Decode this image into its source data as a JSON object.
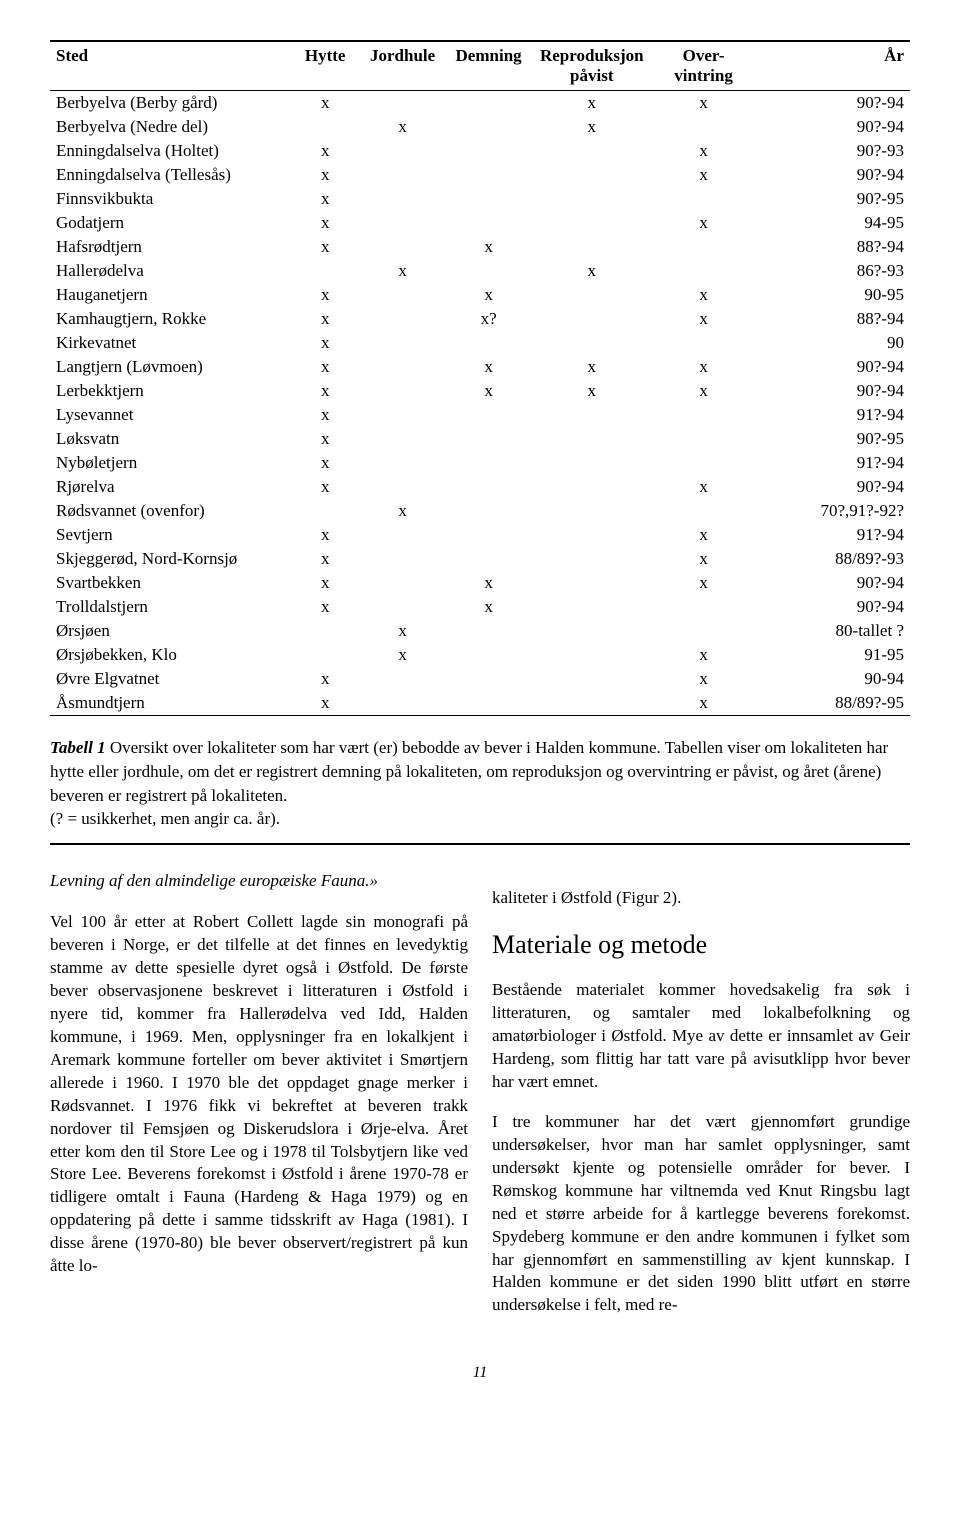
{
  "table": {
    "headers": {
      "sted": "Sted",
      "hytte": "Hytte",
      "jordhule": "Jordhule",
      "demning": "Demning",
      "reproduksjon": "Reproduksjon påvist",
      "overvintring": "Over-vintring",
      "ar": "År"
    },
    "rows": [
      {
        "sted": "Berbyelva (Berby gård)",
        "hytte": "x",
        "jordhule": "",
        "demning": "",
        "repro": "x",
        "over": "x",
        "ar": "90?-94"
      },
      {
        "sted": "Berbyelva (Nedre del)",
        "hytte": "",
        "jordhule": "x",
        "demning": "",
        "repro": "x",
        "over": "",
        "ar": "90?-94"
      },
      {
        "sted": "Enningdalselva (Holtet)",
        "hytte": "x",
        "jordhule": "",
        "demning": "",
        "repro": "",
        "over": "x",
        "ar": "90?-93"
      },
      {
        "sted": "Enningdalselva (Tellesås)",
        "hytte": "x",
        "jordhule": "",
        "demning": "",
        "repro": "",
        "over": "x",
        "ar": "90?-94"
      },
      {
        "sted": "Finnsvikbukta",
        "hytte": "x",
        "jordhule": "",
        "demning": "",
        "repro": "",
        "over": "",
        "ar": "90?-95"
      },
      {
        "sted": "Godatjern",
        "hytte": "x",
        "jordhule": "",
        "demning": "",
        "repro": "",
        "over": "x",
        "ar": "94-95"
      },
      {
        "sted": "Hafsrødtjern",
        "hytte": "x",
        "jordhule": "",
        "demning": "x",
        "repro": "",
        "over": "",
        "ar": "88?-94"
      },
      {
        "sted": "Hallerødelva",
        "hytte": "",
        "jordhule": "x",
        "demning": "",
        "repro": "x",
        "over": "",
        "ar": "86?-93"
      },
      {
        "sted": "Hauganetjern",
        "hytte": "x",
        "jordhule": "",
        "demning": "x",
        "repro": "",
        "over": "x",
        "ar": "90-95"
      },
      {
        "sted": "Kamhaugtjern, Rokke",
        "hytte": "x",
        "jordhule": "",
        "demning": "x?",
        "repro": "",
        "over": "x",
        "ar": "88?-94"
      },
      {
        "sted": "Kirkevatnet",
        "hytte": "x",
        "jordhule": "",
        "demning": "",
        "repro": "",
        "over": "",
        "ar": "90"
      },
      {
        "sted": "Langtjern (Løvmoen)",
        "hytte": "x",
        "jordhule": "",
        "demning": "x",
        "repro": "x",
        "over": "x",
        "ar": "90?-94"
      },
      {
        "sted": "Lerbekktjern",
        "hytte": "x",
        "jordhule": "",
        "demning": "x",
        "repro": "x",
        "over": "x",
        "ar": "90?-94"
      },
      {
        "sted": "Lysevannet",
        "hytte": "x",
        "jordhule": "",
        "demning": "",
        "repro": "",
        "over": "",
        "ar": "91?-94"
      },
      {
        "sted": "Løksvatn",
        "hytte": "x",
        "jordhule": "",
        "demning": "",
        "repro": "",
        "over": "",
        "ar": "90?-95"
      },
      {
        "sted": "Nybøletjern",
        "hytte": "x",
        "jordhule": "",
        "demning": "",
        "repro": "",
        "over": "",
        "ar": "91?-94"
      },
      {
        "sted": "Rjørelva",
        "hytte": "x",
        "jordhule": "",
        "demning": "",
        "repro": "",
        "over": "x",
        "ar": "90?-94"
      },
      {
        "sted": "Rødsvannet (ovenfor)",
        "hytte": "",
        "jordhule": "x",
        "demning": "",
        "repro": "",
        "over": "",
        "ar": "70?,91?-92?"
      },
      {
        "sted": "Sevtjern",
        "hytte": "x",
        "jordhule": "",
        "demning": "",
        "repro": "",
        "over": "x",
        "ar": "91?-94"
      },
      {
        "sted": "Skjeggerød, Nord-Kornsjø",
        "hytte": "x",
        "jordhule": "",
        "demning": "",
        "repro": "",
        "over": "x",
        "ar": "88/89?-93"
      },
      {
        "sted": "Svartbekken",
        "hytte": "x",
        "jordhule": "",
        "demning": "x",
        "repro": "",
        "over": "x",
        "ar": "90?-94"
      },
      {
        "sted": "Trolldalstjern",
        "hytte": "x",
        "jordhule": "",
        "demning": "x",
        "repro": "",
        "over": "",
        "ar": "90?-94"
      },
      {
        "sted": "Ørsjøen",
        "hytte": "",
        "jordhule": "x",
        "demning": "",
        "repro": "",
        "over": "",
        "ar": "80-tallet ?"
      },
      {
        "sted": "Ørsjøbekken, Klo",
        "hytte": "",
        "jordhule": "x",
        "demning": "",
        "repro": "",
        "over": "x",
        "ar": "91-95"
      },
      {
        "sted": "Øvre Elgvatnet",
        "hytte": "x",
        "jordhule": "",
        "demning": "",
        "repro": "",
        "over": "x",
        "ar": "90-94"
      },
      {
        "sted": "Åsmundtjern",
        "hytte": "x",
        "jordhule": "",
        "demning": "",
        "repro": "",
        "over": "x",
        "ar": "88/89?-95"
      }
    ]
  },
  "caption": {
    "label": "Tabell 1",
    "text": " Oversikt over lokaliteter som har vært (er) bebodde av bever i Halden kommune. Tabellen viser om lokaliteten har hytte eller jordhule, om det er registrert demning på lokaliteten, om reproduksjon og overvintring er påvist, og året (årene) beveren er registrert på lokaliteten.",
    "note": "(? = usikkerhet, men angir ca. år)."
  },
  "body": {
    "quote": "Levning af den almindelige europæiske Fauna.»",
    "p1": "Vel 100 år etter at Robert Collett lagde sin monografi på beveren i Norge, er det tilfelle at det finnes en levedyktig stamme av dette spesielle dyret også i Østfold. De første bever observasjonene beskrevet i litteraturen i Østfold i nyere tid, kommer fra Hallerødelva ved Idd, Halden kommune, i 1969. Men, opplysninger fra en lokalkjent i Aremark kommune forteller om bever aktivitet i Smørtjern allerede i 1960. I 1970 ble det oppdaget gnage merker i Rødsvannet. I 1976 fikk vi bekreftet at beveren trakk nordover til Femsjøen og Diskerudslora i Ørje-elva. Året etter kom den til Store Lee og i 1978 til Tolsbytjern like ved Store Lee. Beverens forekomst i Østfold i årene 1970-78 er tidligere omtalt i Fauna (Hardeng & Haga 1979) og en oppdatering på dette i samme tidsskrift av Haga (1981). I disse årene (1970-80) ble bever observert/registrert på kun åtte lo-",
    "p2a": "kaliteter i Østfold (Figur 2).",
    "h2": "Materiale og metode",
    "p2b": "Bestående materialet kommer hovedsakelig fra søk i litteraturen, og samtaler med lokalbefolkning og amatørbiologer i Østfold. Mye av dette er innsamlet av Geir Hardeng, som flittig har tatt vare på avisutklipp hvor bever har vært emnet.",
    "p2c": "I tre kommuner har det vært gjennomført grundige undersøkelser, hvor man har samlet opplysninger, samt undersøkt kjente og potensielle områder for bever. I Rømskog kommune har viltnemda ved Knut Ringsbu lagt ned et større arbeide for å kartlegge beverens forekomst. Spydeberg kommune er den andre kommunen i fylket som har gjennomført en sammenstilling av kjent kunnskap. I Halden kommune er det siden 1990 blitt utført en større undersøkelse i felt, med re-"
  },
  "pagenum": "11"
}
